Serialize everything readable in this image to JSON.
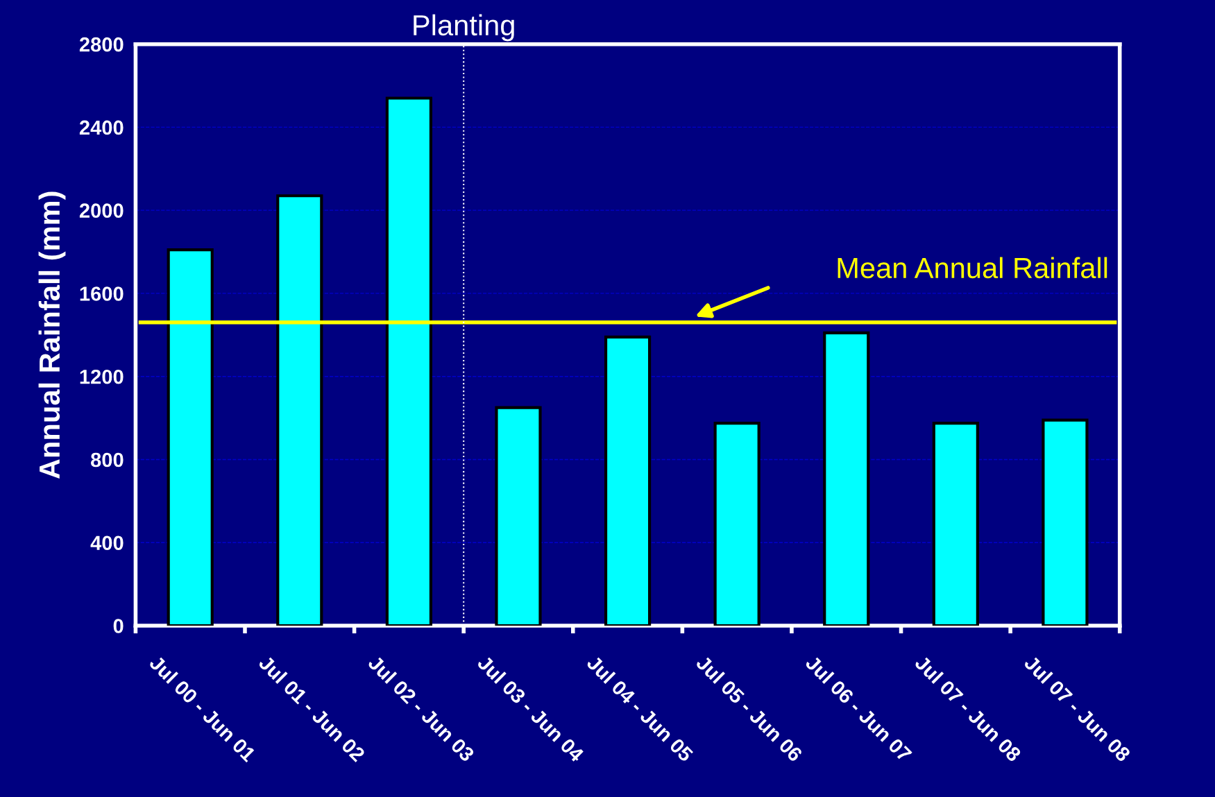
{
  "chart_data": {
    "type": "bar",
    "ylabel": "Annual Rainfall (mm)",
    "categories": [
      "Jul 00 - Jun 01",
      "Jul 01 - Jun 02",
      "Jul 02 - Jun 03",
      "Jul 03 - Jun 04",
      "Jul 04 - Jun 05",
      "Jul 05 - Jun 06",
      "Jul 06 - Jun 07",
      "Jul 07 - Jun 08",
      "Jul 07 - Jun 08"
    ],
    "values": [
      1810,
      2070,
      2540,
      1050,
      1390,
      975,
      1410,
      975,
      990
    ],
    "color": "#00ffff",
    "ylim": [
      0,
      2800
    ],
    "yticks": [
      0,
      400,
      800,
      1200,
      1600,
      2000,
      2400,
      2800
    ],
    "grid": "y",
    "ref_lines": [
      {
        "axis": "y",
        "value": 1460,
        "label": "Mean Annual Rainfall",
        "color": "#ffff00",
        "line_style": "solid"
      },
      {
        "axis": "x",
        "value": "Jul 03 - Jun 04",
        "label": "Planting",
        "color": "#ffffff",
        "line_style": "dotted"
      }
    ]
  }
}
